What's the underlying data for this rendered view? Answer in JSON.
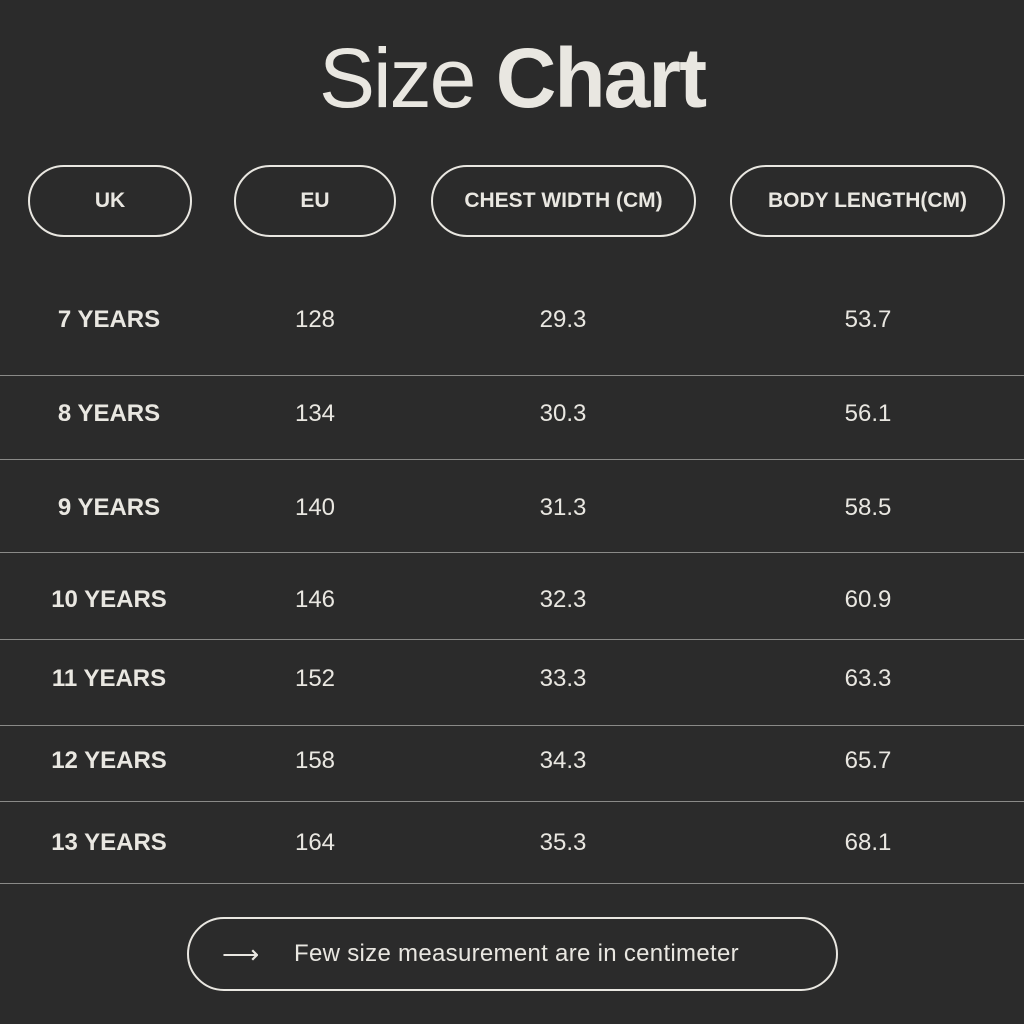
{
  "title": {
    "light": "Size",
    "bold": "Chart"
  },
  "headers": [
    "UK",
    "EU",
    "CHEST WIDTH (CM)",
    "BODY LENGTH(CM)"
  ],
  "rows": [
    [
      "7 YEARS",
      "128",
      "29.3",
      "53.7"
    ],
    [
      "8 YEARS",
      "134",
      "30.3",
      "56.1"
    ],
    [
      "9 YEARS",
      "140",
      "31.3",
      "58.5"
    ],
    [
      "10 YEARS",
      "146",
      "32.3",
      "60.9"
    ],
    [
      "11 YEARS",
      "152",
      "33.3",
      "63.3"
    ],
    [
      "12 YEARS",
      "158",
      "34.3",
      "65.7"
    ],
    [
      "13 YEARS",
      "164",
      "35.3",
      "68.1"
    ]
  ],
  "note": {
    "icon": "arrow-right-icon",
    "text": "Few size measurement are in centimeter"
  },
  "colors": {
    "background": "#2b2b2b",
    "text": "#e9e7e1"
  }
}
